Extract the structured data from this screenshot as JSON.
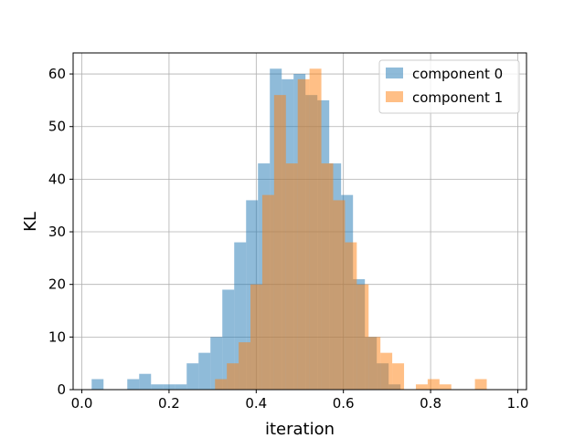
{
  "chart_data": {
    "type": "histogram",
    "title": "",
    "xlabel": "iteration",
    "ylabel": "KL",
    "xlim": [
      -0.02,
      1.02
    ],
    "ylim": [
      0,
      64
    ],
    "xticks": [
      "0.0",
      "0.2",
      "0.4",
      "0.6",
      "0.8",
      "1.0"
    ],
    "xtick_values": [
      0.0,
      0.2,
      0.4,
      0.6,
      0.8,
      1.0
    ],
    "yticks": [
      "0",
      "10",
      "20",
      "30",
      "40",
      "50",
      "60"
    ],
    "ytick_values": [
      0,
      10,
      20,
      30,
      40,
      50,
      60
    ],
    "grid": true,
    "legend_position": "top-right",
    "series": [
      {
        "name": "component 0",
        "color": "#1f77b4",
        "bin_start": 0.0225,
        "bin_width": 0.02725,
        "values": [
          2,
          0,
          0,
          2,
          3,
          1,
          1,
          1,
          5,
          7,
          10,
          19,
          28,
          36,
          43,
          61,
          59,
          60,
          56,
          55,
          43,
          37,
          21,
          10,
          5,
          1
        ]
      },
      {
        "name": "component 1",
        "color": "#ff7f0e",
        "bin_start": 0.3055,
        "bin_width": 0.0271,
        "values": [
          2,
          5,
          9,
          20,
          37,
          56,
          43,
          59,
          61,
          43,
          36,
          28,
          20,
          10,
          7,
          5,
          0,
          1,
          2,
          1,
          0,
          0,
          2
        ]
      }
    ]
  }
}
